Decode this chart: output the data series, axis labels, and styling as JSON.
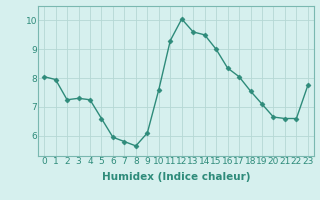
{
  "x": [
    0,
    1,
    2,
    3,
    4,
    5,
    6,
    7,
    8,
    9,
    10,
    11,
    12,
    13,
    14,
    15,
    16,
    17,
    18,
    19,
    20,
    21,
    22,
    23
  ],
  "y": [
    8.05,
    7.95,
    7.25,
    7.3,
    7.25,
    6.6,
    5.95,
    5.8,
    5.65,
    6.1,
    7.6,
    9.3,
    10.05,
    9.6,
    9.5,
    9.0,
    8.35,
    8.05,
    7.55,
    7.1,
    6.65,
    6.6,
    6.6,
    7.75
  ],
  "line_color": "#2e8b7a",
  "marker": "D",
  "markersize": 2.5,
  "linewidth": 1.0,
  "bg_color": "#d6f0ee",
  "grid_color": "#b5d8d4",
  "xlabel": "Humidex (Indice chaleur)",
  "xlabel_fontsize": 7.5,
  "xlabel_fontweight": "bold",
  "ylim": [
    5.3,
    10.5
  ],
  "xlim": [
    -0.5,
    23.5
  ],
  "yticks": [
    6,
    7,
    8,
    9,
    10
  ],
  "xticks": [
    0,
    1,
    2,
    3,
    4,
    5,
    6,
    7,
    8,
    9,
    10,
    11,
    12,
    13,
    14,
    15,
    16,
    17,
    18,
    19,
    20,
    21,
    22,
    23
  ],
  "tick_fontsize": 6.5,
  "tick_color": "#2e8b7a"
}
